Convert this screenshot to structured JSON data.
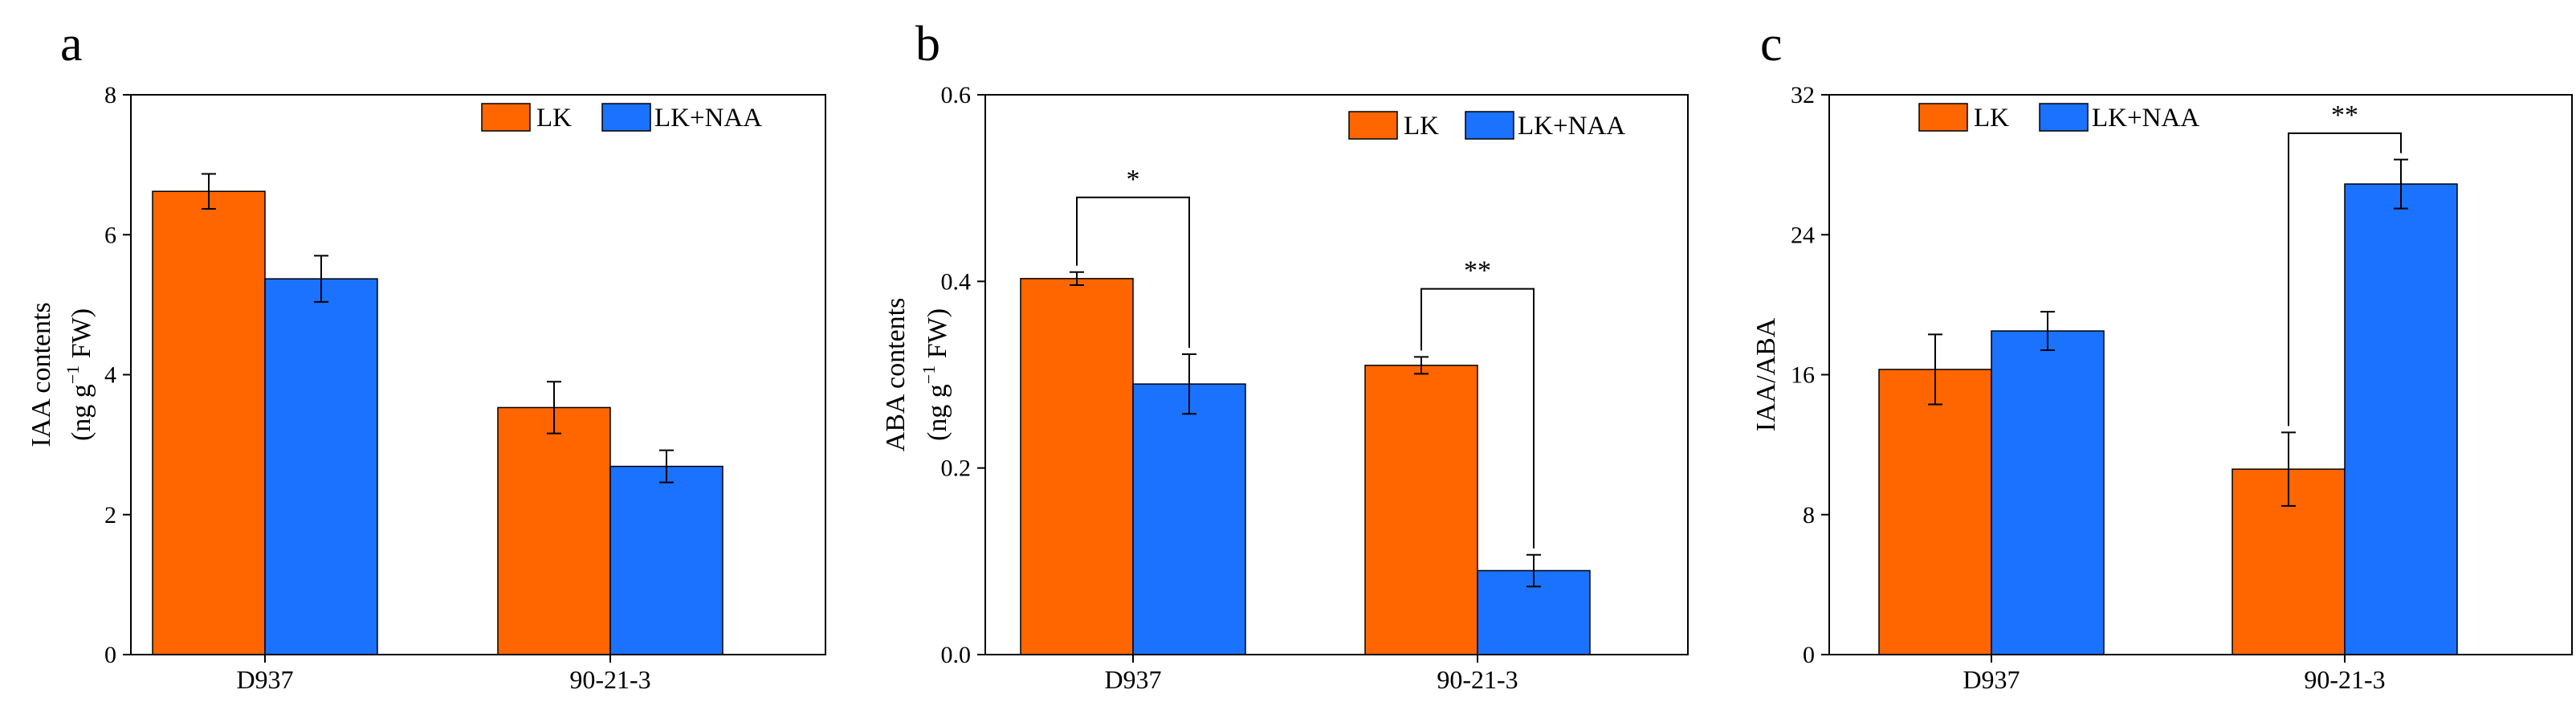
{
  "colors": {
    "LK": "#ff6600",
    "LK+NAA": "#1a72ff",
    "axis": "#000000"
  },
  "chart_data": [
    {
      "type": "bar",
      "panel": "a",
      "title": "",
      "categories": [
        "D937",
        "90-21-3"
      ],
      "series": [
        {
          "name": "LK",
          "values": [
            6.62,
            3.53
          ],
          "errors": [
            0.25,
            0.37
          ]
        },
        {
          "name": "LK+NAA",
          "values": [
            5.37,
            2.69
          ],
          "errors": [
            0.33,
            0.23
          ]
        }
      ],
      "ylabel_line1": "IAA contents",
      "ylabel_line2_pre": "(ng g",
      "ylabel_sup": "−1",
      "ylabel_line2_post": "  FW)",
      "ylim": [
        0,
        8
      ],
      "yticks": [
        0,
        2,
        4,
        6,
        8
      ],
      "ytick_labels": [
        "0",
        "2",
        "4",
        "6",
        "8"
      ],
      "legend": [
        "LK",
        "LK+NAA"
      ],
      "legend_position": "top-right",
      "significance": []
    },
    {
      "type": "bar",
      "panel": "b",
      "title": "",
      "categories": [
        "D937",
        "90-21-3"
      ],
      "series": [
        {
          "name": "LK",
          "values": [
            0.403,
            0.31
          ],
          "errors": [
            0.007,
            0.009
          ]
        },
        {
          "name": "LK+NAA",
          "values": [
            0.29,
            0.09
          ],
          "errors": [
            0.032,
            0.017
          ]
        }
      ],
      "ylabel_line1": "ABA contents",
      "ylabel_line2_pre": "(ng g",
      "ylabel_sup": "−1",
      "ylabel_line2_post": "  FW)",
      "ylim": [
        0,
        0.6
      ],
      "yticks": [
        0,
        0.2,
        0.4,
        0.6
      ],
      "ytick_labels": [
        "0.0",
        "0.2",
        "0.4",
        "0.6"
      ],
      "legend": [
        "LK",
        "LK+NAA"
      ],
      "legend_position": "top-right",
      "significance": [
        {
          "category": 0,
          "label": "*",
          "top": 0.49
        },
        {
          "category": 1,
          "label": "**",
          "top": 0.392
        }
      ]
    },
    {
      "type": "bar",
      "panel": "c",
      "title": "",
      "categories": [
        "D937",
        "90-21-3"
      ],
      "series": [
        {
          "name": "LK",
          "values": [
            16.3,
            10.6
          ],
          "errors": [
            2.0,
            2.1
          ]
        },
        {
          "name": "LK+NAA",
          "values": [
            18.5,
            26.9
          ],
          "errors": [
            1.1,
            1.4
          ]
        }
      ],
      "ylabel_line1": "IAA/ABA",
      "ylabel_line2_pre": "",
      "ylabel_sup": "",
      "ylabel_line2_post": "",
      "ylim": [
        0,
        32
      ],
      "yticks": [
        0,
        8,
        16,
        24,
        32
      ],
      "ytick_labels": [
        "0",
        "8",
        "16",
        "24",
        "32"
      ],
      "legend": [
        "LK",
        "LK+NAA"
      ],
      "legend_position": "top-left",
      "significance": [
        {
          "category": 1,
          "label": "**",
          "top": 29.8
        }
      ]
    }
  ]
}
